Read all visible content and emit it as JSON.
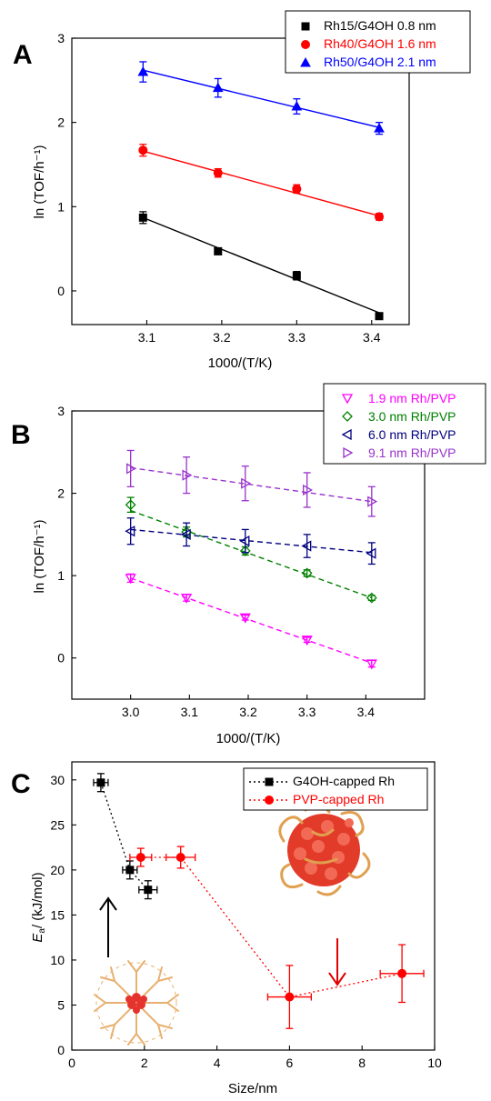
{
  "panels": {
    "A": {
      "letter": "A",
      "xlabel": "1000/(T/K)",
      "ylabel": "ln (TOF/h⁻¹)"
    },
    "B": {
      "letter": "B",
      "xlabel": "1000/(T/K)",
      "ylabel": "ln (TOF/h⁻¹)"
    },
    "C": {
      "letter": "C",
      "xlabel": "Size/nm",
      "ylabel": "Ea/ (kJ/mol)"
    }
  },
  "chart_data": [
    {
      "panel": "A",
      "type": "line",
      "xlabel": "1000/(T/K)",
      "ylabel": "ln (TOF/h⁻¹)",
      "xlim": [
        3.0,
        3.45
      ],
      "ylim": [
        -0.4,
        3.0
      ],
      "xticks": [
        3.1,
        3.2,
        3.3,
        3.4
      ],
      "xtick_labels": [
        "3.1",
        "3.2",
        "3.3",
        "3.4"
      ],
      "yticks": [
        0,
        1,
        2,
        3
      ],
      "ytick_labels": [
        "0",
        "1",
        "2",
        "3"
      ],
      "legend_position": "top-right",
      "series": [
        {
          "name": "Rh15/G4OH 0.8 nm",
          "color": "#000000",
          "marker": "square",
          "line": "solid",
          "x": [
            3.095,
            3.195,
            3.3,
            3.41
          ],
          "y": [
            0.87,
            0.47,
            0.18,
            -0.3
          ],
          "err": [
            0.07,
            0.03,
            0.05,
            0.03
          ],
          "fit": [
            [
              3.095,
              0.87
            ],
            [
              3.41,
              -0.26
            ]
          ]
        },
        {
          "name": "Rh40/G4OH 1.6 nm",
          "color": "#ff0000",
          "marker": "circle",
          "line": "solid",
          "x": [
            3.095,
            3.195,
            3.3,
            3.41
          ],
          "y": [
            1.67,
            1.4,
            1.21,
            0.88
          ],
          "err": [
            0.07,
            0.05,
            0.05,
            0.04
          ],
          "fit": [
            [
              3.095,
              1.66
            ],
            [
              3.41,
              0.89
            ]
          ]
        },
        {
          "name": "Rh50/G4OH 2.1 nm",
          "color": "#0000ff",
          "marker": "triangle-up",
          "line": "solid",
          "x": [
            3.095,
            3.195,
            3.3,
            3.41
          ],
          "y": [
            2.6,
            2.41,
            2.19,
            1.93
          ],
          "err": [
            0.12,
            0.11,
            0.09,
            0.07
          ],
          "fit": [
            [
              3.095,
              2.62
            ],
            [
              3.41,
              1.94
            ]
          ]
        }
      ]
    },
    {
      "panel": "B",
      "type": "line",
      "xlabel": "1000/(T/K)",
      "ylabel": "ln (TOF/h⁻¹)",
      "xlim": [
        2.9,
        3.5
      ],
      "ylim": [
        -0.5,
        3.0
      ],
      "xticks": [
        3.0,
        3.1,
        3.2,
        3.3,
        3.4
      ],
      "xtick_labels": [
        "3.0",
        "3.1",
        "3.2",
        "3.3",
        "3.4"
      ],
      "yticks": [
        0,
        1,
        2,
        3
      ],
      "ytick_labels": [
        "0",
        "1",
        "2",
        "3"
      ],
      "legend_position": "top-right",
      "series": [
        {
          "name": "1.9 nm Rh/PVP",
          "color": "#ff00ff",
          "marker": "triangle-down",
          "line": "dashed",
          "x": [
            3.0,
            3.095,
            3.195,
            3.3,
            3.41
          ],
          "y": [
            0.97,
            0.73,
            0.49,
            0.22,
            -0.07
          ],
          "err": [
            0.05,
            0.04,
            0.03,
            0.03,
            0.04
          ],
          "fit": [
            [
              3.0,
              0.97
            ],
            [
              3.41,
              -0.06
            ]
          ]
        },
        {
          "name": "3.0 nm Rh/PVP",
          "color": "#008000",
          "marker": "diamond",
          "line": "dashed",
          "x": [
            3.0,
            3.095,
            3.195,
            3.3,
            3.41
          ],
          "y": [
            1.86,
            1.53,
            1.3,
            1.03,
            0.73
          ],
          "err": [
            0.09,
            0.06,
            0.05,
            0.04,
            0.03
          ],
          "fit": [
            [
              3.0,
              1.79
            ],
            [
              3.41,
              0.73
            ]
          ]
        },
        {
          "name": "6.0 nm Rh/PVP",
          "color": "#000080",
          "marker": "triangle-left",
          "line": "dashed",
          "x": [
            3.0,
            3.095,
            3.195,
            3.3,
            3.41
          ],
          "y": [
            1.54,
            1.5,
            1.42,
            1.36,
            1.27
          ],
          "err": [
            0.16,
            0.14,
            0.14,
            0.14,
            0.13
          ],
          "fit": [
            [
              3.0,
              1.56
            ],
            [
              3.41,
              1.28
            ]
          ]
        },
        {
          "name": "9.1 nm Rh/PVP",
          "color": "#9933cc",
          "marker": "triangle-right",
          "line": "dashed",
          "x": [
            3.0,
            3.095,
            3.195,
            3.3,
            3.41
          ],
          "y": [
            2.3,
            2.22,
            2.12,
            2.04,
            1.9
          ],
          "err": [
            0.22,
            0.22,
            0.21,
            0.21,
            0.18
          ],
          "fit": [
            [
              3.0,
              2.31
            ],
            [
              3.41,
              1.9
            ]
          ]
        }
      ]
    },
    {
      "panel": "C",
      "type": "scatter",
      "xlabel": "Size/nm",
      "ylabel": "Ea/ (kJ/mol)",
      "xlim": [
        0,
        10
      ],
      "ylim": [
        0,
        32
      ],
      "xticks": [
        0,
        2,
        4,
        6,
        8,
        10
      ],
      "xtick_labels": [
        "0",
        "2",
        "4",
        "6",
        "8",
        "10"
      ],
      "yticks": [
        0,
        5,
        10,
        15,
        20,
        25,
        30
      ],
      "ytick_labels": [
        "0",
        "5",
        "10",
        "15",
        "20",
        "25",
        "30"
      ],
      "legend_position": "top-right",
      "series": [
        {
          "name": "G4OH-capped Rh",
          "color": "#000000",
          "marker": "square",
          "line": "dotted",
          "x": [
            0.8,
            1.6,
            2.1
          ],
          "y": [
            29.7,
            20.0,
            17.8
          ],
          "xerr": [
            0.2,
            0.2,
            0.25
          ],
          "yerr": [
            1.0,
            1.0,
            1.0
          ]
        },
        {
          "name": "PVP-capped Rh",
          "color": "#ff0000",
          "marker": "circle",
          "line": "dotted",
          "x": [
            1.9,
            3.0,
            6.0,
            9.1
          ],
          "y": [
            21.4,
            21.4,
            5.9,
            8.5
          ],
          "xerr": [
            0.3,
            0.4,
            0.6,
            0.6
          ],
          "yerr": [
            1.0,
            1.2,
            3.5,
            3.2
          ]
        }
      ]
    }
  ]
}
